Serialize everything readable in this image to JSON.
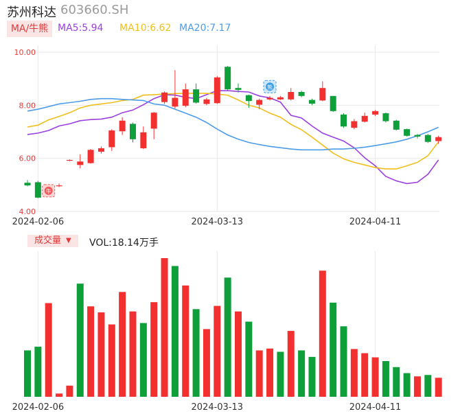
{
  "header": {
    "name": "苏州科达",
    "code": "603660.SH"
  },
  "legend": {
    "tag": "MA/牛熊",
    "items": [
      {
        "label": "MA5:5.94",
        "color": "#9b3ee0"
      },
      {
        "label": "MA10:6.62",
        "color": "#f0bf1b"
      },
      {
        "label": "MA20:7.17",
        "color": "#4c9be8"
      }
    ]
  },
  "volume_header": {
    "tag": "成交量",
    "arrow": "▼",
    "text": "VOL:18.14万手"
  },
  "markers": {
    "bull": "牛",
    "bear": "熊"
  },
  "colors": {
    "up": "#f23030",
    "down": "#0e9f3a",
    "grid": "#e8e8e8",
    "axis_text": "#e03a3a",
    "date_text": "#333333"
  },
  "chart_data": [
    {
      "type": "candlestick",
      "ylim": [
        4.0,
        10.0
      ],
      "yticks": [
        "10.00",
        "8.00",
        "6.00",
        "4.00"
      ],
      "xtick_labels": [
        "2024-02-06",
        "2024-03-13",
        "2024-04-11"
      ],
      "xtick_index": [
        1,
        18,
        33
      ],
      "candles": [
        {
          "o": 5.08,
          "c": 4.98,
          "h": 5.18,
          "l": 4.95
        },
        {
          "o": 5.1,
          "c": 4.52,
          "h": 5.15,
          "l": 4.5
        },
        {
          "o": 4.6,
          "c": 4.9,
          "h": 4.95,
          "l": 4.58
        },
        {
          "o": 4.95,
          "c": 4.98,
          "h": 5.05,
          "l": 4.92
        },
        {
          "o": 5.92,
          "c": 5.94,
          "h": 5.96,
          "l": 5.9
        },
        {
          "o": 5.75,
          "c": 5.88,
          "h": 6.15,
          "l": 5.62
        },
        {
          "o": 5.82,
          "c": 6.32,
          "h": 6.35,
          "l": 5.8
        },
        {
          "o": 6.25,
          "c": 6.38,
          "h": 6.45,
          "l": 6.18
        },
        {
          "o": 6.42,
          "c": 7.05,
          "h": 7.1,
          "l": 6.28
        },
        {
          "o": 7.02,
          "c": 7.42,
          "h": 7.55,
          "l": 6.88
        },
        {
          "o": 7.3,
          "c": 6.72,
          "h": 7.35,
          "l": 6.6
        },
        {
          "o": 6.38,
          "c": 6.98,
          "h": 7.2,
          "l": 6.35
        },
        {
          "o": 7.12,
          "c": 7.72,
          "h": 7.75,
          "l": 6.72
        },
        {
          "o": 8.12,
          "c": 8.48,
          "h": 8.52,
          "l": 8.05
        },
        {
          "o": 7.95,
          "c": 8.28,
          "h": 9.32,
          "l": 7.88
        },
        {
          "o": 7.98,
          "c": 8.6,
          "h": 8.82,
          "l": 7.92
        },
        {
          "o": 8.6,
          "c": 8.1,
          "h": 8.82,
          "l": 8.06
        },
        {
          "o": 8.05,
          "c": 8.22,
          "h": 8.28,
          "l": 8.0
        },
        {
          "o": 8.08,
          "c": 9.05,
          "h": 9.1,
          "l": 8.05
        },
        {
          "o": 9.45,
          "c": 8.6,
          "h": 9.48,
          "l": 8.55
        },
        {
          "o": 8.65,
          "c": 8.58,
          "h": 8.82,
          "l": 8.48
        },
        {
          "o": 8.38,
          "c": 8.16,
          "h": 8.4,
          "l": 7.9
        },
        {
          "o": 8.02,
          "c": 8.2,
          "h": 8.25,
          "l": 7.85
        },
        {
          "o": 8.22,
          "c": 8.28,
          "h": 8.35,
          "l": 8.18
        },
        {
          "o": 8.22,
          "c": 8.3,
          "h": 8.35,
          "l": 8.2
        },
        {
          "o": 8.22,
          "c": 8.5,
          "h": 8.65,
          "l": 8.18
        },
        {
          "o": 8.5,
          "c": 8.35,
          "h": 8.55,
          "l": 8.3
        },
        {
          "o": 8.2,
          "c": 8.06,
          "h": 8.25,
          "l": 8.0
        },
        {
          "o": 8.18,
          "c": 8.65,
          "h": 8.9,
          "l": 8.15
        },
        {
          "o": 8.35,
          "c": 7.78,
          "h": 8.35,
          "l": 7.75
        },
        {
          "o": 7.65,
          "c": 7.2,
          "h": 7.7,
          "l": 7.15
        },
        {
          "o": 7.15,
          "c": 7.4,
          "h": 7.48,
          "l": 7.1
        },
        {
          "o": 7.38,
          "c": 7.6,
          "h": 7.72,
          "l": 7.35
        },
        {
          "o": 7.65,
          "c": 7.78,
          "h": 7.82,
          "l": 7.6
        },
        {
          "o": 7.7,
          "c": 7.4,
          "h": 7.72,
          "l": 7.35
        },
        {
          "o": 7.42,
          "c": 7.08,
          "h": 7.45,
          "l": 7.05
        },
        {
          "o": 7.1,
          "c": 6.85,
          "h": 7.12,
          "l": 6.82
        },
        {
          "o": 6.88,
          "c": 6.82,
          "h": 6.92,
          "l": 6.75
        },
        {
          "o": 6.88,
          "c": 6.62,
          "h": 6.92,
          "l": 6.58
        },
        {
          "o": 6.65,
          "c": 6.8,
          "h": 6.85,
          "l": 6.55
        }
      ],
      "series": [
        {
          "name": "MA5",
          "color": "#9b3ee0",
          "values": [
            6.9,
            6.95,
            7.05,
            7.22,
            7.3,
            7.42,
            7.46,
            7.48,
            7.55,
            7.72,
            7.82,
            8.02,
            8.25,
            8.4,
            8.38,
            8.3,
            8.25,
            8.4,
            8.55,
            8.55,
            8.52,
            8.5,
            8.35,
            8.28,
            8.12,
            7.62,
            7.52,
            7.22,
            6.95,
            6.8,
            6.65,
            6.4,
            6.02,
            5.72,
            5.32,
            5.15,
            5.05,
            5.1,
            5.4,
            5.94
          ]
        },
        {
          "name": "MA10",
          "color": "#f0bf1b",
          "values": [
            7.18,
            7.25,
            7.45,
            7.58,
            7.72,
            7.9,
            8.0,
            8.05,
            8.1,
            8.18,
            8.22,
            8.38,
            8.4,
            8.42,
            8.44,
            8.45,
            8.45,
            8.45,
            8.42,
            8.38,
            8.2,
            8.0,
            7.9,
            7.7,
            7.55,
            7.28,
            7.08,
            6.8,
            6.5,
            6.2,
            5.98,
            5.85,
            5.75,
            5.65,
            5.6,
            5.6,
            5.72,
            5.85,
            6.1,
            6.62
          ]
        },
        {
          "name": "MA20",
          "color": "#4c9be8",
          "values": [
            7.78,
            7.85,
            7.95,
            8.05,
            8.1,
            8.15,
            8.22,
            8.25,
            8.25,
            8.22,
            8.2,
            8.18,
            8.05,
            8.0,
            7.85,
            7.7,
            7.55,
            7.35,
            7.1,
            6.88,
            6.72,
            6.6,
            6.52,
            6.45,
            6.4,
            6.35,
            6.32,
            6.32,
            6.32,
            6.35,
            6.35,
            6.38,
            6.42,
            6.48,
            6.55,
            6.62,
            6.72,
            6.85,
            7.0,
            7.17
          ]
        }
      ],
      "signals": [
        {
          "type": "bull",
          "index": 2,
          "value": 4.78
        },
        {
          "type": "bear",
          "index": 23,
          "value": 8.7
        }
      ]
    },
    {
      "type": "bar",
      "name": "VOL",
      "xtick_labels": [
        "2024-02-06",
        "2024-03-13",
        "2024-04-11"
      ],
      "values": [
        10.0,
        10.8,
        20.2,
        0.7,
        2.4,
        24.4,
        19.5,
        18.2,
        15.6,
        22.6,
        18.4,
        15.9,
        20.4,
        29.9,
        28.2,
        24.0,
        18.9,
        14.6,
        19.6,
        25.7,
        18.4,
        16.2,
        10.0,
        10.4,
        9.7,
        14.2,
        10.0,
        8.6,
        27.2,
        20.3,
        15.2,
        10.3,
        9.4,
        8.5,
        7.7,
        6.4,
        5.1,
        4.4,
        4.7,
        4.1
      ],
      "up": [
        false,
        false,
        true,
        true,
        true,
        false,
        true,
        true,
        true,
        true,
        true,
        false,
        true,
        true,
        false,
        true,
        false,
        true,
        true,
        false,
        true,
        false,
        true,
        true,
        false,
        true,
        false,
        false,
        true,
        false,
        false,
        true,
        true,
        true,
        false,
        false,
        false,
        true,
        false,
        true
      ]
    }
  ]
}
